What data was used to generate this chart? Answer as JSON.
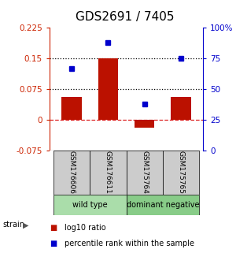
{
  "title": "GDS2691 / 7405",
  "samples": [
    "GSM176606",
    "GSM176611",
    "GSM175764",
    "GSM175765"
  ],
  "log10_ratio": [
    0.055,
    0.15,
    -0.02,
    0.055
  ],
  "percentile_rank": [
    0.67,
    0.88,
    0.38,
    0.75
  ],
  "ylim_left": [
    -0.075,
    0.225
  ],
  "ylim_right": [
    0,
    1.0
  ],
  "yticks_left": [
    -0.075,
    0,
    0.075,
    0.15,
    0.225
  ],
  "yticks_right": [
    0,
    0.25,
    0.5,
    0.75,
    1.0
  ],
  "ytick_labels_right": [
    "0",
    "25",
    "50",
    "75",
    "100%"
  ],
  "ytick_labels_left": [
    "-0.075",
    "0",
    "0.075",
    "0.15",
    "0.225"
  ],
  "hlines": [
    0.075,
    0.15
  ],
  "bar_color": "#bb1100",
  "dot_color": "#0000cc",
  "zero_line_color": "#dd2222",
  "groups": [
    {
      "label": "wild type",
      "indices": [
        0,
        1
      ],
      "color": "#aaddaa"
    },
    {
      "label": "dominant negative",
      "indices": [
        2,
        3
      ],
      "color": "#88cc88"
    }
  ],
  "strain_label": "strain",
  "legend_bar_label": "log10 ratio",
  "legend_dot_label": "percentile rank within the sample",
  "bar_width": 0.55,
  "sample_box_color": "#cccccc",
  "title_fontsize": 11,
  "tick_fontsize": 7.5,
  "label_fontsize": 6.5,
  "group_fontsize": 7,
  "legend_fontsize": 7
}
